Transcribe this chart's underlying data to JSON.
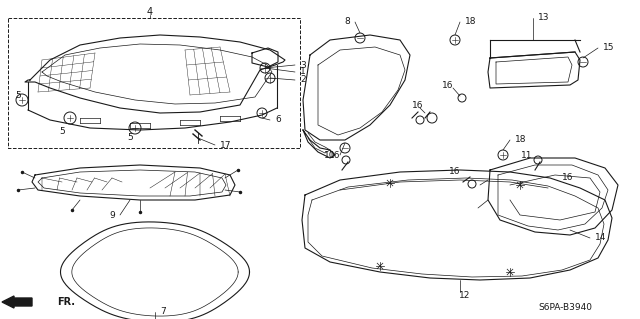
{
  "diagram_code": "S6PA-B3940",
  "bg_color": "#ffffff",
  "line_color": "#1a1a1a",
  "figsize": [
    6.4,
    3.19
  ],
  "dpi": 100
}
